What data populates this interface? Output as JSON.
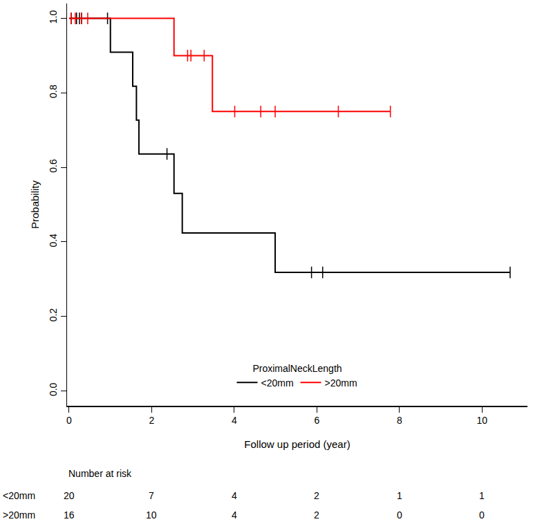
{
  "chart_data": {
    "type": "line",
    "xlabel": "Follow up period (year)",
    "ylabel": "Probability",
    "legend_title": "ProximalNeckLength",
    "legend": "bottom",
    "marker": "line-ns",
    "grid": false,
    "xlim": [
      -0.05,
      11.1
    ],
    "xticks": [
      0,
      2,
      4,
      6,
      8,
      10
    ],
    "ylim": [
      -0.04,
      1.04
    ],
    "yticks": [
      {
        "value": 0,
        "label": "0.0"
      },
      0.2,
      0.4,
      0.6,
      0.8,
      {
        "value": 1,
        "label": "1.0"
      }
    ],
    "series": [
      {
        "name": "<20mm",
        "color": "#000000",
        "line_style": "step",
        "x": [
          0,
          1.0,
          1.54,
          1.63,
          1.69,
          2.54,
          2.74,
          4.99,
          10.68
        ],
        "values": [
          1,
          0.909,
          0.818,
          0.727,
          0.636,
          0.53,
          0.424,
          0.318,
          0.318
        ],
        "censored": {
          "x": [
            0.05,
            0.18,
            0.25,
            0.3,
            0.93,
            2.37,
            5.87,
            6.14,
            10.68
          ],
          "values": [
            1,
            1,
            1,
            1,
            1,
            0.636,
            0.318,
            0.318,
            0.318
          ]
        }
      },
      {
        "name": ">20mm",
        "color": "#ff0000",
        "line_style": "step",
        "x": [
          0,
          2.54,
          3.47,
          7.78
        ],
        "values": [
          1,
          0.9,
          0.75,
          0.75
        ],
        "censored": {
          "x": [
            0.05,
            0.15,
            0.3,
            0.45,
            2.87,
            2.95,
            3.27,
            4.01,
            4.64,
            4.99,
            6.52,
            7.78
          ],
          "values": [
            1,
            1,
            1,
            1,
            0.9,
            0.9,
            0.9,
            0.75,
            0.75,
            0.75,
            0.75,
            0.75
          ]
        }
      }
    ],
    "number_at_risk": {
      "title": "Number at risk",
      "times": [
        0,
        2,
        4,
        6,
        8,
        10
      ],
      "rows": [
        {
          "label": "<20mm",
          "values": [
            20,
            7,
            4,
            2,
            1,
            1
          ]
        },
        {
          "label": ">20mm",
          "values": [
            16,
            10,
            4,
            2,
            0,
            0
          ]
        }
      ]
    }
  }
}
